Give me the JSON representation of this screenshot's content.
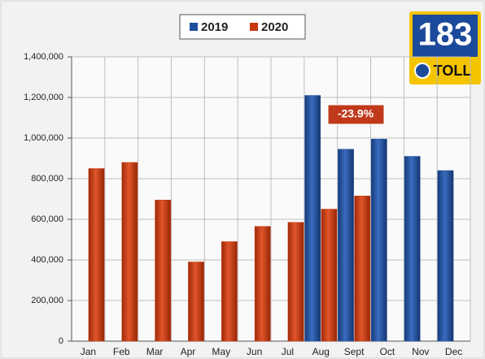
{
  "chart_data": {
    "type": "bar",
    "categories": [
      "Jan",
      "Feb",
      "Mar",
      "Apr",
      "May",
      "Jun",
      "Jul",
      "Aug",
      "Sept",
      "Oct",
      "Nov",
      "Dec"
    ],
    "series": [
      {
        "name": "2019",
        "color": "#1f4e9c",
        "values": [
          null,
          null,
          null,
          null,
          null,
          null,
          null,
          1210000,
          945000,
          995000,
          910000,
          840000
        ]
      },
      {
        "name": "2020",
        "color": "#c8380f",
        "values": [
          850000,
          880000,
          695000,
          390000,
          490000,
          565000,
          585000,
          650000,
          715000,
          null,
          null,
          null
        ]
      }
    ],
    "ylim": [
      0,
      1400000
    ],
    "yticks": [
      0,
      {
        "value": 200000,
        "label": "200,000"
      },
      {
        "value": 400000,
        "label": "400,000"
      },
      {
        "value": 600000,
        "label": "600,000"
      },
      {
        "value": 800000,
        "label": "800,000"
      },
      {
        "value": 1000000,
        "label": "1,000,000"
      },
      {
        "value": 1200000,
        "label": "1,200,000"
      },
      {
        "value": 1400000,
        "label": "1,400,000"
      }
    ],
    "grid": true,
    "legend": "top",
    "annotation": "-23.9%",
    "logo": {
      "number": "183",
      "text": "TOLL"
    }
  }
}
